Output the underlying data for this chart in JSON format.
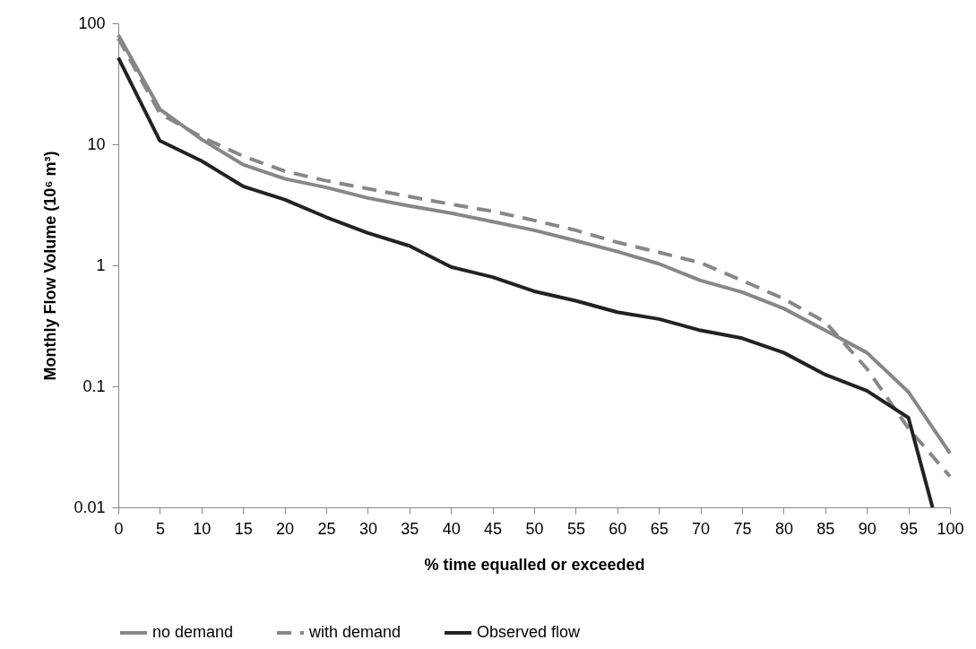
{
  "chart_data": {
    "type": "line",
    "xlabel": "% time equalled or exceeded",
    "ylabel": "Monthly Flow Volume (10⁶ m³)",
    "x": [
      0,
      5,
      10,
      15,
      20,
      25,
      30,
      35,
      40,
      45,
      50,
      55,
      60,
      65,
      70,
      75,
      80,
      85,
      90,
      95,
      100
    ],
    "xlim": [
      0,
      100
    ],
    "xticks": [
      0,
      5,
      10,
      15,
      20,
      25,
      30,
      35,
      40,
      45,
      50,
      55,
      60,
      65,
      70,
      75,
      80,
      85,
      90,
      95,
      100
    ],
    "ylim": [
      0.01,
      100
    ],
    "yticks": [
      0.01,
      0.1,
      1,
      10,
      100
    ],
    "log": true,
    "legend": "bottom",
    "series": [
      {
        "name": "no demand",
        "color": "#878787",
        "line_style": "solid",
        "values": [
          80,
          19.5,
          11,
          6.8,
          5.2,
          4.4,
          3.6,
          3.1,
          2.7,
          2.3,
          1.95,
          1.6,
          1.3,
          1.03,
          0.75,
          0.6,
          0.44,
          0.29,
          0.19,
          0.09,
          0.028
        ]
      },
      {
        "name": "with demand",
        "color": "#878787",
        "line_style": "dashed",
        "values": [
          75,
          18,
          11.5,
          8,
          6,
          5,
          4.3,
          3.7,
          3.2,
          2.8,
          2.35,
          1.95,
          1.55,
          1.28,
          1.05,
          0.75,
          0.53,
          0.34,
          0.14,
          0.045,
          0.018
        ]
      },
      {
        "name": "Observed flow",
        "color": "#222222",
        "line_style": "solid",
        "x": [
          0,
          5,
          10,
          15,
          20,
          25,
          30,
          35,
          40,
          45,
          50,
          55,
          60,
          65,
          70,
          75,
          80,
          85,
          90,
          95,
          97.9
        ],
        "values": [
          52,
          10.7,
          7.3,
          4.5,
          3.5,
          2.5,
          1.85,
          1.45,
          0.97,
          0.8,
          0.61,
          0.51,
          0.41,
          0.36,
          0.29,
          0.25,
          0.19,
          0.125,
          0.092,
          0.055,
          0.01
        ]
      }
    ]
  }
}
